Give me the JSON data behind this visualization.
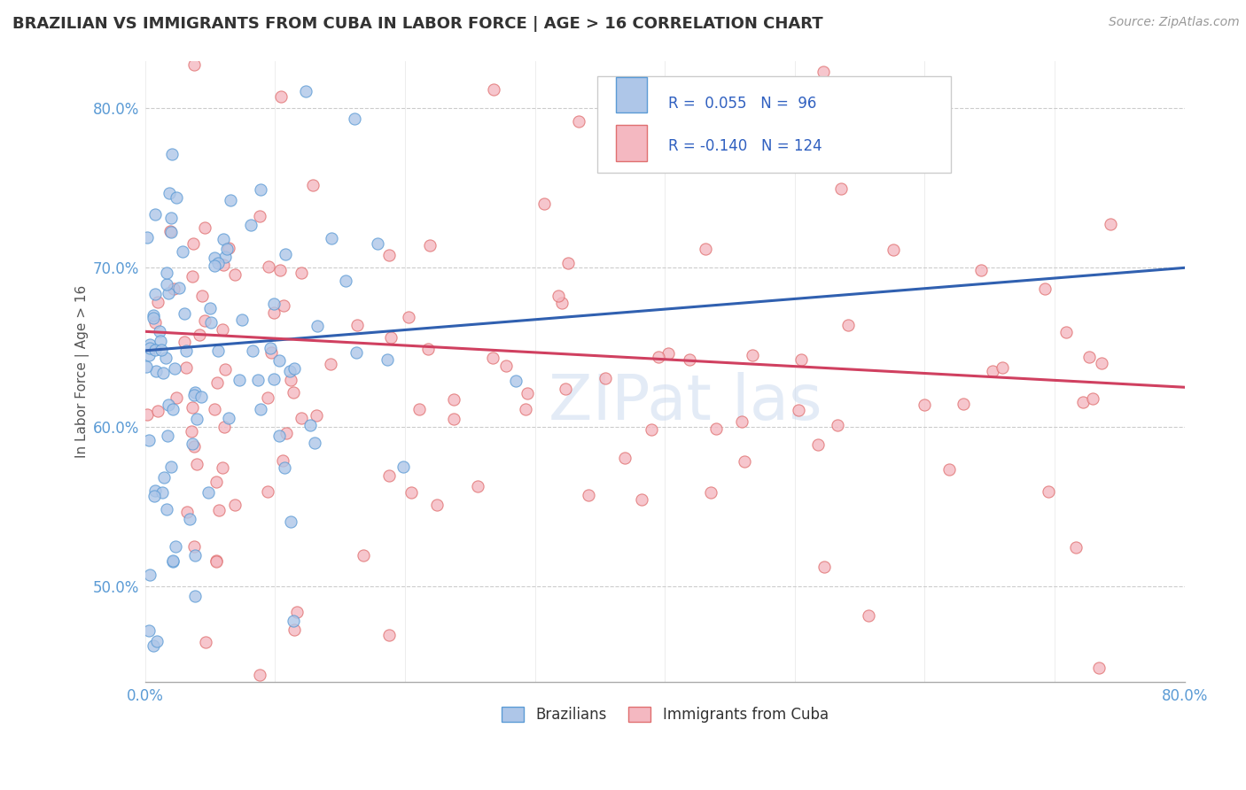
{
  "title": "BRAZILIAN VS IMMIGRANTS FROM CUBA IN LABOR FORCE | AGE > 16 CORRELATION CHART",
  "source_text": "Source: ZipAtlas.com",
  "ylabel": "In Labor Force | Age > 16",
  "xlim": [
    0.0,
    0.8
  ],
  "ylim": [
    0.44,
    0.83
  ],
  "ytick_values": [
    0.5,
    0.6,
    0.7,
    0.8
  ],
  "xtick_values": [
    0.0,
    0.8
  ],
  "blue_color": "#5b9bd5",
  "pink_color": "#e07070",
  "blue_fill": "#aec6e8",
  "pink_fill": "#f4b8c1",
  "blue_line_color": "#3060b0",
  "pink_line_color": "#d04060",
  "watermark_color": "#c8d8ee",
  "background_color": "#ffffff",
  "grid_color": "#cccccc",
  "blue_r": 0.055,
  "blue_n": 96,
  "pink_r": -0.14,
  "pink_n": 124,
  "blue_line_x1": 0.0,
  "blue_line_y1": 0.648,
  "blue_line_x2": 0.8,
  "blue_line_y2": 0.7,
  "pink_line_x1": 0.0,
  "pink_line_y1": 0.66,
  "pink_line_x2": 0.8,
  "pink_line_y2": 0.625,
  "tick_color": "#5b9bd5",
  "title_color": "#333333",
  "source_color": "#999999",
  "ylabel_color": "#555555"
}
